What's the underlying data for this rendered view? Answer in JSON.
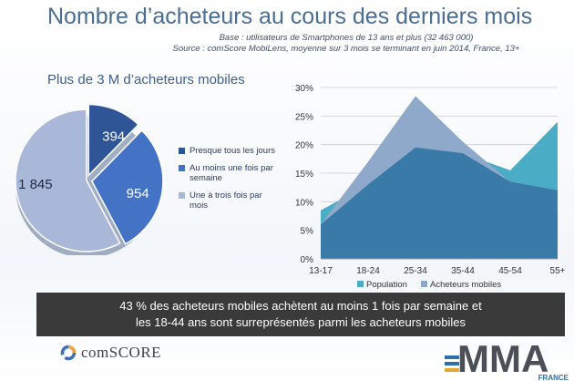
{
  "header": {
    "title": "Nombre d’acheteurs au cours des derniers mois",
    "base": "Base : utilisateurs de Smartphones de 13 ans et plus (32 463 000)",
    "source": "Source : comScore MobiLens, moyenne sur 3 mois se terminant en juin 2014, France, 13+"
  },
  "pie_section": {
    "subtitle": "Plus de 3 M d’acheteurs mobiles"
  },
  "banner": {
    "line1": "43 % des acheteurs mobiles achètent au moins 1 fois par semaine et",
    "line2": "les 18-44 ans sont surreprésentés parmi les acheteurs mobiles"
  },
  "logos": {
    "comscore": "comSCORE",
    "mma": "MMA",
    "mma_sub": "FRANCE"
  },
  "chart_data": [
    {
      "type": "pie",
      "labels": [
        "Presque tous les jours",
        "Au moins une fois par semaine",
        "Une à trois fois par mois"
      ],
      "values": [
        394,
        954,
        1845
      ],
      "value_labels": [
        "394",
        "954",
        "1 845"
      ],
      "colors": [
        "#2f5597",
        "#4472c4",
        "#a9b8d9"
      ]
    },
    {
      "type": "area",
      "categories": [
        "13-17",
        "18-24",
        "25-34",
        "35-44",
        "45-54",
        "55+"
      ],
      "series": [
        {
          "name": "Population",
          "values": [
            8.5,
            13.0,
            19.5,
            18.5,
            15.5,
            24.0
          ],
          "color": "#4bacc6"
        },
        {
          "name": "Acheteurs mobiles",
          "values": [
            6.0,
            17.0,
            28.5,
            20.5,
            13.5,
            12.0
          ],
          "color": "#8ea9c9"
        }
      ],
      "overlap_color": "#3a7aa8",
      "ylim": [
        0,
        30
      ],
      "yticks": [
        "0%",
        "5%",
        "10%",
        "15%",
        "20%",
        "25%",
        "30%"
      ],
      "grid": true,
      "legend": "bottom"
    }
  ]
}
